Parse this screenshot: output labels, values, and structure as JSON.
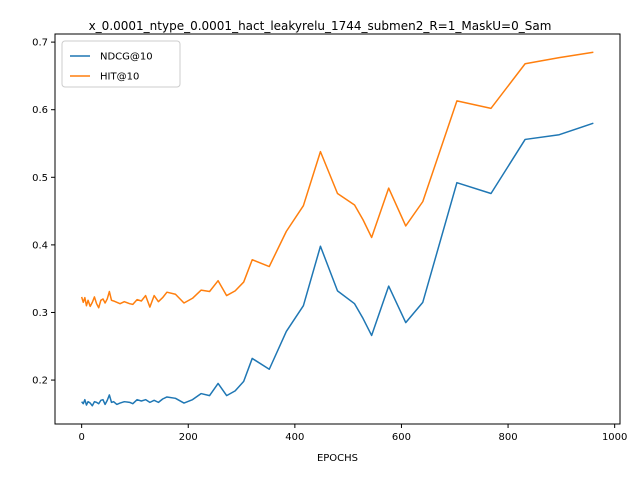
{
  "chart_data": {
    "type": "line",
    "title": "x_0.0001_ntype_0.0001_hact_leakyrelu_1744_submen2_R=1_MaskU=0_Sam",
    "xlabel": "EPOCHS",
    "ylabel": "",
    "xlim": [
      -50,
      1010
    ],
    "ylim": [
      0.135,
      0.712
    ],
    "xticks": [
      0,
      200,
      400,
      600,
      800,
      1000
    ],
    "yticks": [
      0.2,
      0.3,
      0.4,
      0.5,
      0.6,
      0.7
    ],
    "legend": "top-left",
    "grid": false,
    "series": [
      {
        "name": "NDCG@10",
        "color": "#1f77b4",
        "points": [
          [
            0,
            0.168
          ],
          [
            3,
            0.165
          ],
          [
            6,
            0.171
          ],
          [
            9,
            0.163
          ],
          [
            12,
            0.168
          ],
          [
            16,
            0.166
          ],
          [
            20,
            0.162
          ],
          [
            24,
            0.168
          ],
          [
            28,
            0.167
          ],
          [
            32,
            0.165
          ],
          [
            36,
            0.17
          ],
          [
            40,
            0.171
          ],
          [
            44,
            0.164
          ],
          [
            48,
            0.17
          ],
          [
            52,
            0.178
          ],
          [
            56,
            0.167
          ],
          [
            60,
            0.168
          ],
          [
            66,
            0.164
          ],
          [
            72,
            0.166
          ],
          [
            80,
            0.168
          ],
          [
            90,
            0.167
          ],
          [
            96,
            0.165
          ],
          [
            104,
            0.171
          ],
          [
            112,
            0.169
          ],
          [
            120,
            0.171
          ],
          [
            128,
            0.167
          ],
          [
            136,
            0.17
          ],
          [
            144,
            0.167
          ],
          [
            152,
            0.172
          ],
          [
            160,
            0.175
          ],
          [
            176,
            0.173
          ],
          [
            192,
            0.166
          ],
          [
            208,
            0.171
          ],
          [
            224,
            0.18
          ],
          [
            240,
            0.177
          ],
          [
            256,
            0.195
          ],
          [
            272,
            0.177
          ],
          [
            288,
            0.184
          ],
          [
            304,
            0.198
          ],
          [
            320,
            0.232
          ],
          [
            352,
            0.216
          ],
          [
            384,
            0.272
          ],
          [
            416,
            0.31
          ],
          [
            448,
            0.398
          ],
          [
            480,
            0.332
          ],
          [
            512,
            0.313
          ],
          [
            528,
            0.291
          ],
          [
            544,
            0.266
          ],
          [
            576,
            0.339
          ],
          [
            608,
            0.285
          ],
          [
            640,
            0.315
          ],
          [
            704,
            0.492
          ],
          [
            768,
            0.476
          ],
          [
            832,
            0.556
          ],
          [
            896,
            0.563
          ],
          [
            960,
            0.58
          ]
        ]
      },
      {
        "name": "HIT@10",
        "color": "#ff7f0e",
        "points": [
          [
            0,
            0.323
          ],
          [
            3,
            0.315
          ],
          [
            6,
            0.322
          ],
          [
            9,
            0.31
          ],
          [
            12,
            0.318
          ],
          [
            16,
            0.309
          ],
          [
            20,
            0.315
          ],
          [
            24,
            0.323
          ],
          [
            28,
            0.313
          ],
          [
            32,
            0.307
          ],
          [
            36,
            0.318
          ],
          [
            40,
            0.32
          ],
          [
            44,
            0.314
          ],
          [
            48,
            0.32
          ],
          [
            52,
            0.331
          ],
          [
            56,
            0.318
          ],
          [
            60,
            0.317
          ],
          [
            66,
            0.315
          ],
          [
            72,
            0.313
          ],
          [
            80,
            0.316
          ],
          [
            90,
            0.313
          ],
          [
            96,
            0.312
          ],
          [
            104,
            0.319
          ],
          [
            112,
            0.317
          ],
          [
            120,
            0.325
          ],
          [
            128,
            0.308
          ],
          [
            136,
            0.325
          ],
          [
            144,
            0.316
          ],
          [
            152,
            0.322
          ],
          [
            160,
            0.33
          ],
          [
            176,
            0.327
          ],
          [
            192,
            0.314
          ],
          [
            208,
            0.321
          ],
          [
            224,
            0.333
          ],
          [
            240,
            0.331
          ],
          [
            256,
            0.347
          ],
          [
            272,
            0.325
          ],
          [
            288,
            0.332
          ],
          [
            304,
            0.345
          ],
          [
            320,
            0.378
          ],
          [
            352,
            0.368
          ],
          [
            384,
            0.42
          ],
          [
            416,
            0.458
          ],
          [
            448,
            0.538
          ],
          [
            480,
            0.476
          ],
          [
            512,
            0.459
          ],
          [
            528,
            0.437
          ],
          [
            544,
            0.411
          ],
          [
            576,
            0.484
          ],
          [
            608,
            0.428
          ],
          [
            640,
            0.464
          ],
          [
            704,
            0.613
          ],
          [
            768,
            0.602
          ],
          [
            832,
            0.668
          ],
          [
            896,
            0.677
          ],
          [
            960,
            0.685
          ]
        ]
      }
    ]
  }
}
